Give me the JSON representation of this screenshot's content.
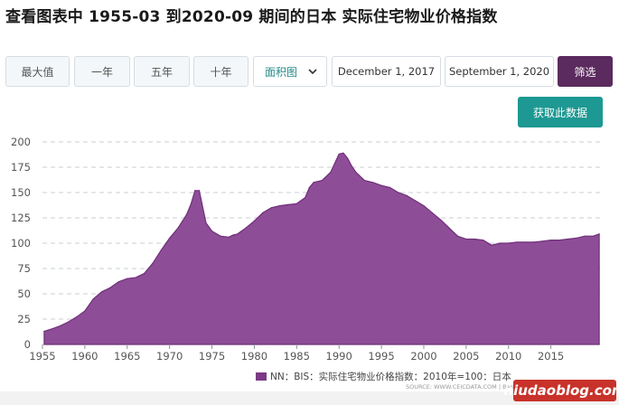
{
  "page_title": "查看图表中 1955-03 到2020-09 期间的日本 实际住宅物业价格指数",
  "controls": {
    "range_buttons": [
      "最大值",
      "一年",
      "五年",
      "十年"
    ],
    "chart_type_select": "面积图",
    "date_from": "December 1, 2017",
    "date_to": "September 1, 2020",
    "filter_label": "筛选",
    "download_label": "获取此数据"
  },
  "colors": {
    "area": "#8e4d97",
    "area_stroke": "#6f2f79",
    "filter_button": "#5b2a5e",
    "download_button": "#1d9892"
  },
  "legend_label": "NN：BIS：实际住宅物业价格指数：2010年=100：日本",
  "source_text": "SOURCE: WWW.CEICDATA.COM | Ban",
  "watermark": "niudaoblog.com",
  "chart_data": {
    "type": "area",
    "series": [
      {
        "name": "NN：BIS：实际住宅物业价格指数：2010年=100：日本",
        "x": [
          1955.2,
          1956,
          1957,
          1958,
          1959,
          1960,
          1961,
          1962,
          1963,
          1964,
          1965,
          1966,
          1967,
          1968,
          1969,
          1970,
          1971,
          1972,
          1972.5,
          1973,
          1973.5,
          1973.8,
          1974.3,
          1975,
          1976,
          1977,
          1977.5,
          1978,
          1979,
          1980,
          1981,
          1982,
          1983,
          1984,
          1985,
          1986,
          1986.5,
          1987,
          1988,
          1989,
          1990,
          1990.5,
          1991,
          1991.5,
          1992,
          1993,
          1994,
          1995,
          1996,
          1997,
          1998,
          1999,
          2000,
          2001,
          2002,
          2003,
          2004,
          2005,
          2006,
          2007,
          2008,
          2009,
          2010,
          2011,
          2012,
          2013,
          2014,
          2015,
          2016,
          2017,
          2018,
          2019,
          2020,
          2020.7
        ],
        "values": [
          13,
          15,
          18,
          22,
          27,
          33,
          45,
          52,
          56,
          62,
          65,
          66,
          70,
          80,
          93,
          105,
          115,
          128,
          138,
          152,
          152,
          140,
          120,
          112,
          107,
          106,
          108,
          109,
          115,
          122,
          130,
          135,
          137,
          138,
          139,
          145,
          155,
          160,
          162,
          170,
          188,
          189,
          184,
          176,
          170,
          162,
          160,
          157,
          155,
          150,
          147,
          142,
          137,
          130,
          123,
          115,
          107,
          104,
          104,
          103,
          98,
          100,
          100,
          101,
          101,
          101,
          102,
          103,
          103,
          104,
          105,
          107,
          107,
          109
        ]
      }
    ],
    "x_ticks": [
      "1955",
      "1960",
      "1965",
      "1970",
      "1975",
      "1980",
      "1985",
      "1990",
      "1995",
      "2000",
      "2005",
      "2010",
      "2015"
    ],
    "y_ticks": [
      "0",
      "25",
      "50",
      "75",
      "100",
      "125",
      "150",
      "175",
      "200"
    ],
    "xlim": [
      1955,
      2020.8
    ],
    "ylim": [
      0,
      200
    ],
    "grid": true,
    "legend_position": "bottom"
  }
}
